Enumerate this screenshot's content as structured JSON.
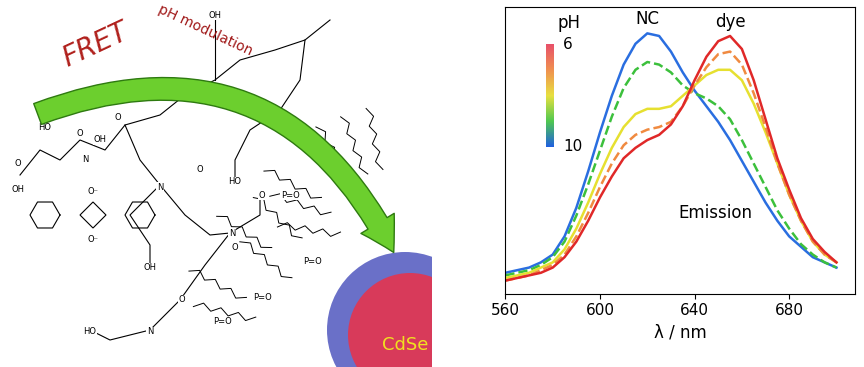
{
  "diagram": {
    "arrow_label": "FRET",
    "arrow_note": "pH modulation",
    "core_label": "CdSe",
    "ligand_labels": [
      "OH",
      "O",
      "OH",
      "O",
      "N",
      "OH",
      "HO",
      "O",
      "HO",
      "O",
      "N",
      "O",
      "O",
      "OH",
      "N",
      "P=O",
      "P=O",
      "P=O",
      "P=O",
      "HO",
      "N",
      "O",
      "O⁻",
      "O⁻"
    ]
  },
  "chart_data": {
    "type": "line",
    "xlabel": "λ / nm",
    "x": [
      560,
      565,
      570,
      575,
      580,
      585,
      590,
      595,
      600,
      605,
      610,
      615,
      620,
      625,
      630,
      635,
      640,
      645,
      650,
      655,
      660,
      665,
      670,
      675,
      680,
      685,
      690,
      695,
      700
    ],
    "xlim": [
      560,
      708
    ],
    "xticks": [
      560,
      600,
      640,
      680
    ],
    "ylim": [
      0,
      1.1
    ],
    "tick_labels": "x",
    "series": [
      {
        "color": "#2a6ee0",
        "line_style": "solid",
        "values": [
          0.08,
          0.09,
          0.1,
          0.12,
          0.15,
          0.22,
          0.33,
          0.47,
          0.62,
          0.76,
          0.88,
          0.96,
          1.0,
          0.99,
          0.93,
          0.85,
          0.78,
          0.72,
          0.66,
          0.59,
          0.51,
          0.43,
          0.35,
          0.28,
          0.22,
          0.18,
          0.14,
          0.12,
          0.1
        ]
      },
      {
        "color": "#3cc03c",
        "line_style": "dashed",
        "values": [
          0.07,
          0.08,
          0.09,
          0.11,
          0.14,
          0.2,
          0.3,
          0.42,
          0.55,
          0.68,
          0.79,
          0.86,
          0.89,
          0.88,
          0.85,
          0.8,
          0.77,
          0.75,
          0.72,
          0.67,
          0.59,
          0.5,
          0.41,
          0.32,
          0.25,
          0.19,
          0.15,
          0.12,
          0.1
        ]
      },
      {
        "color": "#e6e030",
        "line_style": "solid",
        "values": [
          0.06,
          0.07,
          0.08,
          0.1,
          0.12,
          0.17,
          0.25,
          0.35,
          0.46,
          0.56,
          0.64,
          0.69,
          0.71,
          0.71,
          0.72,
          0.76,
          0.8,
          0.84,
          0.86,
          0.86,
          0.82,
          0.73,
          0.62,
          0.5,
          0.38,
          0.28,
          0.2,
          0.15,
          0.12
        ]
      },
      {
        "color": "#f08a40",
        "line_style": "dashed",
        "values": [
          0.05,
          0.06,
          0.07,
          0.09,
          0.11,
          0.15,
          0.22,
          0.31,
          0.41,
          0.5,
          0.57,
          0.61,
          0.63,
          0.64,
          0.66,
          0.72,
          0.8,
          0.87,
          0.92,
          0.93,
          0.88,
          0.77,
          0.64,
          0.5,
          0.38,
          0.28,
          0.2,
          0.15,
          0.12
        ]
      },
      {
        "color": "#e02828",
        "line_style": "solid",
        "values": [
          0.05,
          0.06,
          0.07,
          0.08,
          0.1,
          0.14,
          0.2,
          0.28,
          0.37,
          0.45,
          0.52,
          0.56,
          0.59,
          0.61,
          0.65,
          0.72,
          0.82,
          0.91,
          0.97,
          0.99,
          0.94,
          0.82,
          0.67,
          0.52,
          0.4,
          0.29,
          0.21,
          0.16,
          0.12
        ]
      }
    ],
    "annotations": {
      "first_peak": "NC",
      "last_peak": "dye",
      "note": "Emission"
    },
    "colorbar": {
      "label": "pH",
      "range": [
        6,
        10
      ],
      "ticks": [
        6,
        10
      ],
      "colors": [
        "#e8506a",
        "#f09050",
        "#e8e040",
        "#50c850",
        "#2060e0"
      ]
    }
  }
}
